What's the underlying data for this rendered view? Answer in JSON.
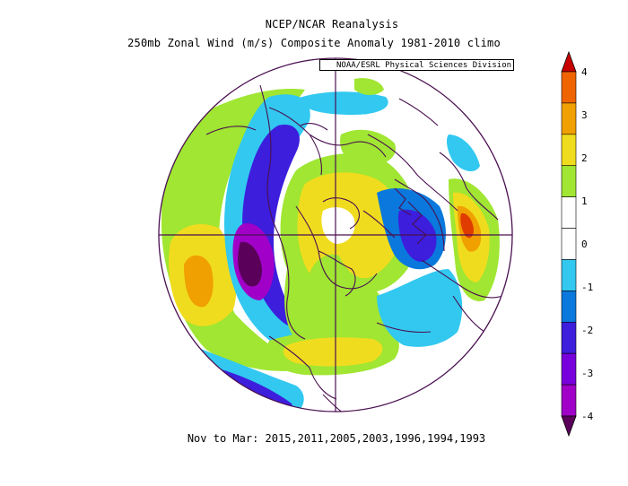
{
  "titles": {
    "line1": "NCEP/NCAR Reanalysis",
    "line2": "250mb Zonal Wind (m/s) Composite Anomaly 1981-2010 climo",
    "credit": "NOAA/ESRL Physical Sciences Division"
  },
  "footer": "Nov to Mar: 2015,2011,2005,2003,1996,1994,1993",
  "projection": "north polar stereographic",
  "colorbar": {
    "min": -4,
    "max": 4,
    "ticks": [
      "4",
      "3",
      "2",
      "1",
      "0",
      "-1",
      "-2",
      "-3",
      "-4"
    ],
    "colors": [
      "#c80000",
      "#f06400",
      "#f0a000",
      "#f0dc1e",
      "#a0e632",
      "#ffffff",
      "#ffffff",
      "#32c8f0",
      "#0a78dc",
      "#3c1edc",
      "#7800dc",
      "#a000c8",
      "#5a005a"
    ]
  },
  "palette": {
    "dark_purple": "#5a005a",
    "purple": "#7800dc",
    "indigo": "#3c1edc",
    "blue": "#0a78dc",
    "light_blue": "#32c8f0",
    "green": "#a0e632",
    "yellow": "#f0dc1e",
    "orange": "#f0a000",
    "dark_orange": "#f06400",
    "red": "#c80000",
    "coastline": "#4a1050"
  }
}
